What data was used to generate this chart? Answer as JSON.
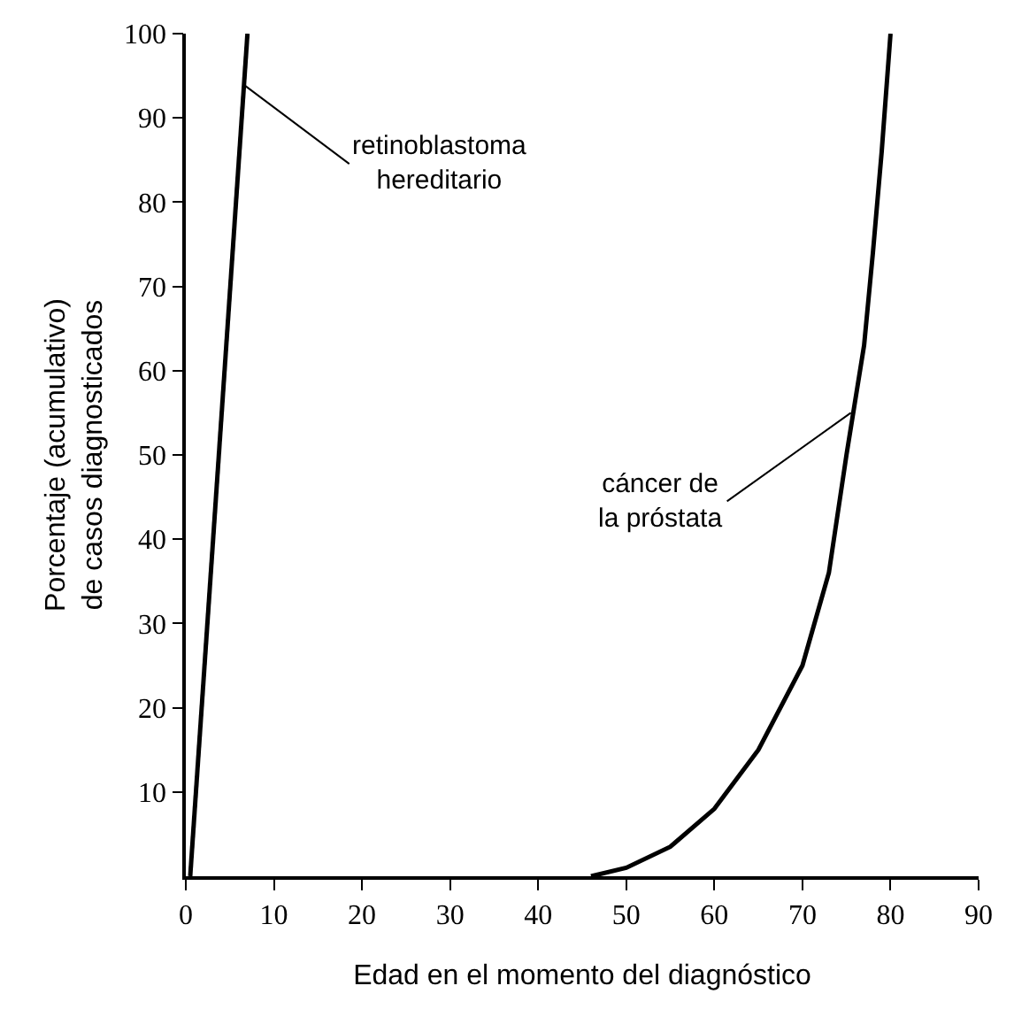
{
  "chart_data": {
    "type": "line",
    "xlabel": "Edad en el momento del diagnóstico",
    "ylabel": "Porcentaje (acumulativo)\nde casos diagnosticados",
    "xlim": [
      0,
      90
    ],
    "xticks": [
      0,
      10,
      20,
      30,
      40,
      50,
      60,
      70,
      80,
      90
    ],
    "ylim": [
      0,
      100
    ],
    "yticks": [
      10,
      20,
      30,
      40,
      50,
      60,
      70,
      80,
      90,
      100
    ],
    "grid": false,
    "marker": "none",
    "line_style": "solid",
    "series": [
      {
        "color": "#000000",
        "x": [
          0.5,
          7
        ],
        "values": [
          0,
          100
        ]
      },
      {
        "color": "#000000",
        "x": [
          46,
          50,
          55,
          60,
          65,
          70,
          73,
          75,
          77,
          78,
          79,
          80
        ],
        "values": [
          0,
          1,
          3.5,
          8,
          15,
          25,
          36,
          50,
          63,
          74,
          86,
          100
        ]
      }
    ],
    "annotations": [
      {
        "text": "retinoblastoma\nhereditario",
        "x": 6.5,
        "y": 94
      },
      {
        "text": "cáncer de\nla próstata",
        "x": 75.5,
        "y": 55
      }
    ]
  }
}
